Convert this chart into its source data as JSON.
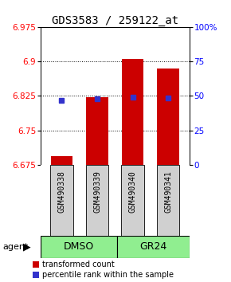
{
  "title": "GDS3583 / 259122_at",
  "samples": [
    "GSM490338",
    "GSM490339",
    "GSM490340",
    "GSM490341"
  ],
  "groups": [
    "DMSO",
    "GR24"
  ],
  "bar_bottom": 6.675,
  "red_bar_tops": [
    6.695,
    6.822,
    6.905,
    6.885
  ],
  "blue_square_vals": [
    6.815,
    6.818,
    6.822,
    6.82
  ],
  "ylim_left": [
    6.675,
    6.975
  ],
  "ylim_right": [
    0,
    100
  ],
  "yticks_left": [
    6.675,
    6.75,
    6.825,
    6.9,
    6.975
  ],
  "yticks_right": [
    0,
    25,
    50,
    75,
    100
  ],
  "ytick_labels_left": [
    "6.675",
    "6.75",
    "6.825",
    "6.9",
    "6.975"
  ],
  "ytick_labels_right": [
    "0",
    "25",
    "50",
    "75",
    "100%"
  ],
  "bar_color": "#CC0000",
  "blue_color": "#3333CC",
  "title_fontsize": 10,
  "tick_fontsize": 7.5,
  "sample_fontsize": 7,
  "group_fontsize": 9,
  "legend_fontsize": 7,
  "agent_fontsize": 8
}
